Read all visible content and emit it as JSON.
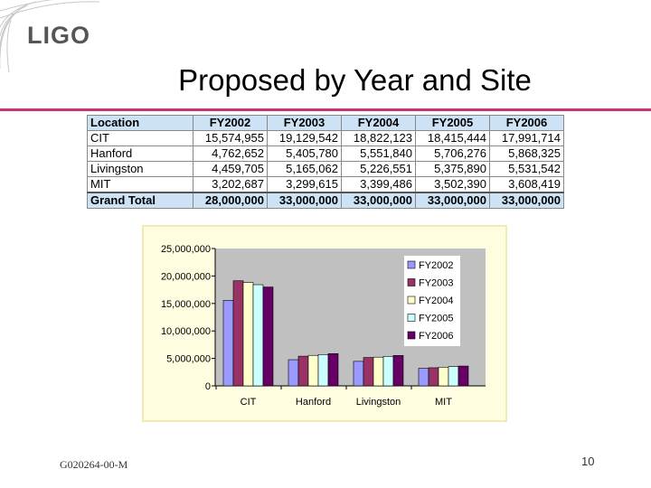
{
  "logo": {
    "text": "LIGO"
  },
  "slide": {
    "title": "Proposed by Year and Site",
    "footer_id": "G020264-00-M",
    "page_number": "10"
  },
  "table": {
    "headers": [
      "Location",
      "FY2002",
      "FY2003",
      "FY2004",
      "FY2005",
      "FY2006"
    ],
    "rows": [
      [
        "CIT",
        "15,574,955",
        "19,129,542",
        "18,822,123",
        "18,415,444",
        "17,991,714"
      ],
      [
        "Hanford",
        "4,762,652",
        "5,405,780",
        "5,551,840",
        "5,706,276",
        "5,868,325"
      ],
      [
        "Livingston",
        "4,459,705",
        "5,165,062",
        "5,226,551",
        "5,375,890",
        "5,531,542"
      ],
      [
        "MIT",
        "3,202,687",
        "3,299,615",
        "3,399,486",
        "3,502,390",
        "3,608,419"
      ]
    ],
    "total": [
      "Grand Total",
      "28,000,000",
      "33,000,000",
      "33,000,000",
      "33,000,000",
      "33,000,000"
    ]
  },
  "chart_data": {
    "type": "bar",
    "categories": [
      "CIT",
      "Hanford",
      "Livingston",
      "MIT"
    ],
    "series": [
      {
        "name": "FY2002",
        "color": "#9999ff",
        "values": [
          15574955,
          4762652,
          4459705,
          3202687
        ]
      },
      {
        "name": "FY2003",
        "color": "#993366",
        "values": [
          19129542,
          5405780,
          5165062,
          3299615
        ]
      },
      {
        "name": "FY2004",
        "color": "#ffffcc",
        "values": [
          18822123,
          5551840,
          5226551,
          3399486
        ]
      },
      {
        "name": "FY2005",
        "color": "#ccffff",
        "values": [
          18415444,
          5706276,
          5375890,
          3502390
        ]
      },
      {
        "name": "FY2006",
        "color": "#660066",
        "values": [
          17991714,
          5868325,
          5531542,
          3608419
        ]
      }
    ],
    "ylim": [
      0,
      25000000
    ],
    "yticks": [
      0,
      5000000,
      10000000,
      15000000,
      20000000,
      25000000
    ],
    "ytick_labels": [
      "0",
      "5,000,000",
      "10,000,000",
      "15,000,000",
      "20,000,000",
      "25,000,000"
    ],
    "plot_background": "#c0c0c0",
    "grid": false,
    "legend": "right",
    "title": "",
    "xlabel": "",
    "ylabel": ""
  }
}
